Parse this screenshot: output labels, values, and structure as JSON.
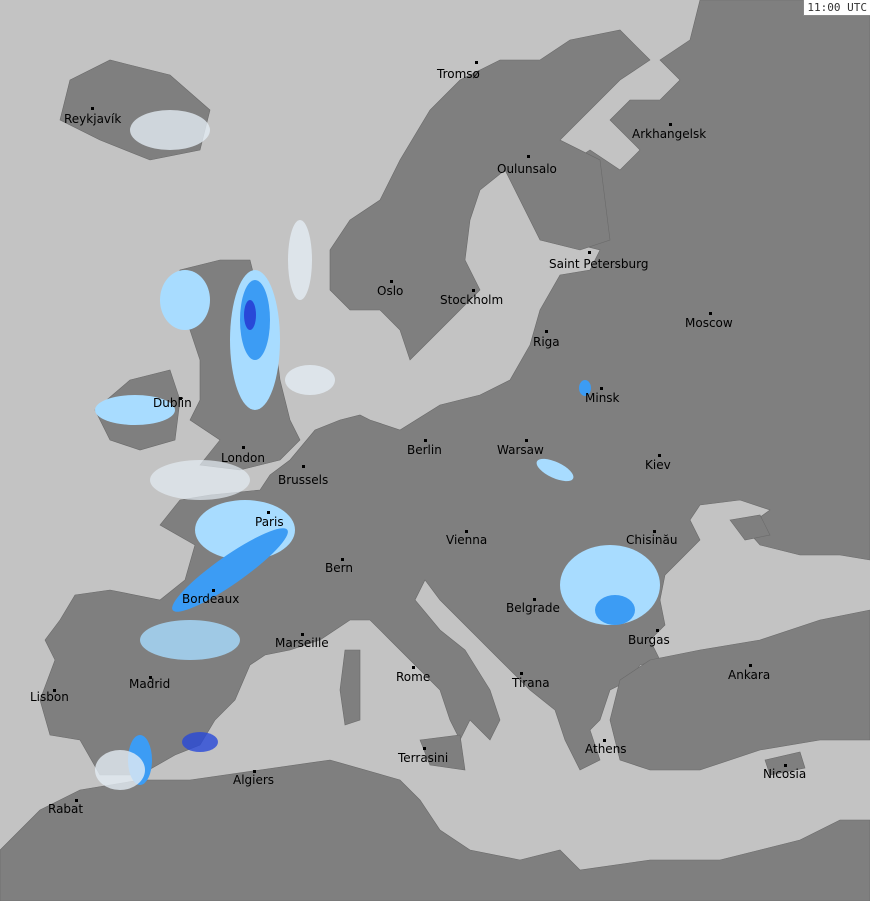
{
  "timestamp": "11:00 UTC",
  "colors": {
    "sea": "#c3c3c3",
    "land": "#7f7f7f",
    "precip_light": "#a8dcff",
    "precip_medium": "#3c9cf4",
    "precip_heavy": "#2848d8",
    "precip_trace": "#e4ecf4"
  },
  "cities": [
    {
      "name": "Reykjavík"
    },
    {
      "name": "Tromsø"
    },
    {
      "name": "Arkhangelsk"
    },
    {
      "name": "Oulunsalo"
    },
    {
      "name": "Saint Petersburg"
    },
    {
      "name": "Oslo"
    },
    {
      "name": "Stockholm"
    },
    {
      "name": "Moscow"
    },
    {
      "name": "Riga"
    },
    {
      "name": "Dublin"
    },
    {
      "name": "Minsk"
    },
    {
      "name": "London"
    },
    {
      "name": "Berlin"
    },
    {
      "name": "Warsaw"
    },
    {
      "name": "Kiev"
    },
    {
      "name": "Brussels"
    },
    {
      "name": "Paris"
    },
    {
      "name": "Chisinău"
    },
    {
      "name": "Vienna"
    },
    {
      "name": "Bern"
    },
    {
      "name": "Bordeaux"
    },
    {
      "name": "Belgrade"
    },
    {
      "name": "Burgas"
    },
    {
      "name": "Marseille"
    },
    {
      "name": "Ankara"
    },
    {
      "name": "Rome"
    },
    {
      "name": "Tirana"
    },
    {
      "name": "Madrid"
    },
    {
      "name": "Lisbon"
    },
    {
      "name": "Athens"
    },
    {
      "name": "Terrasini"
    },
    {
      "name": "Nicosia"
    },
    {
      "name": "Algiers"
    },
    {
      "name": "Rabat"
    }
  ]
}
